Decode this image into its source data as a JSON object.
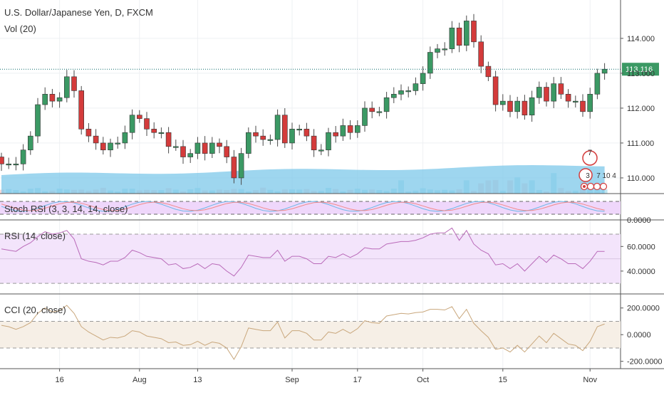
{
  "header": {
    "title": "U.S. Dollar/Japanese Yen, D, FXCM",
    "volume_label": "Vol (20)"
  },
  "price_pane": {
    "last_price": "113.116",
    "ticks": [
      "114.000",
      "113.000",
      "112.000",
      "111.000",
      "110.000"
    ],
    "event_markers": {
      "earnings_count": "7",
      "dividend_count": "3",
      "split_labels": [
        "7",
        "10",
        "4"
      ]
    }
  },
  "stoch_rsi": {
    "label": "Stoch RSI (3, 3, 14, 14, close)",
    "tick": "0.0000"
  },
  "rsi": {
    "label": "RSI (14, close)",
    "ticks": [
      "60.0000",
      "40.0000"
    ]
  },
  "cci": {
    "label": "CCI (20, close)",
    "ticks": [
      "200.0000",
      "0.0000",
      "-200.0000"
    ]
  },
  "x_axis": {
    "labels": [
      "16",
      "Aug",
      "13",
      "Sep",
      "17",
      "Oct",
      "15",
      "Nov"
    ]
  },
  "colors": {
    "up": "#3b9964",
    "down": "#d43b3b",
    "volume": "#7ec8ea",
    "rsi_line": "#b96ab9",
    "rsi_band": "#f3e4fb",
    "cci_line": "#c9a77c",
    "cci_band": "#f6efe6",
    "stoch_band": "#efd7fb",
    "last_price_line": "#0a6c6c"
  },
  "chart_data": [
    {
      "type": "candlestick",
      "title": "U.S. Dollar/Japanese Yen, D, FXCM",
      "ylim": [
        109.55,
        115.1
      ],
      "x_dates": [
        "2018-07-05",
        "2018-07-06",
        "2018-07-09",
        "2018-07-10",
        "2018-07-11",
        "2018-07-12",
        "2018-07-13",
        "2018-07-16",
        "2018-07-17",
        "2018-07-18",
        "2018-07-19",
        "2018-07-20",
        "2018-07-23",
        "2018-07-24",
        "2018-07-25",
        "2018-07-26",
        "2018-07-27",
        "2018-07-30",
        "2018-07-31",
        "2018-08-01",
        "2018-08-02",
        "2018-08-03",
        "2018-08-06",
        "2018-08-07",
        "2018-08-08",
        "2018-08-09",
        "2018-08-10",
        "2018-08-13",
        "2018-08-14",
        "2018-08-15",
        "2018-08-16",
        "2018-08-17",
        "2018-08-20",
        "2018-08-21",
        "2018-08-22",
        "2018-08-23",
        "2018-08-24",
        "2018-08-27",
        "2018-08-28",
        "2018-08-29",
        "2018-08-30",
        "2018-08-31",
        "2018-09-03",
        "2018-09-04",
        "2018-09-05",
        "2018-09-06",
        "2018-09-07",
        "2018-09-10",
        "2018-09-11",
        "2018-09-12",
        "2018-09-13",
        "2018-09-14",
        "2018-09-17",
        "2018-09-18",
        "2018-09-19",
        "2018-09-20",
        "2018-09-21",
        "2018-09-24",
        "2018-09-25",
        "2018-09-26",
        "2018-09-27",
        "2018-09-28",
        "2018-10-01",
        "2018-10-02",
        "2018-10-03",
        "2018-10-04",
        "2018-10-05",
        "2018-10-08",
        "2018-10-09",
        "2018-10-10",
        "2018-10-11",
        "2018-10-12",
        "2018-10-15",
        "2018-10-16",
        "2018-10-17",
        "2018-10-18",
        "2018-10-19",
        "2018-10-22",
        "2018-10-23",
        "2018-10-24",
        "2018-10-25",
        "2018-10-26",
        "2018-10-29",
        "2018-10-30"
      ],
      "open": [
        110.6,
        110.4,
        110.4,
        110.4,
        110.8,
        111.2,
        112.1,
        112.4,
        112.2,
        112.3,
        112.9,
        112.5,
        111.4,
        111.2,
        111.0,
        110.8,
        111.0,
        111.0,
        111.3,
        111.8,
        111.7,
        111.4,
        111.3,
        111.3,
        110.9,
        110.9,
        110.6,
        110.7,
        111.0,
        110.7,
        111.0,
        110.9,
        110.6,
        110.0,
        110.7,
        111.3,
        111.2,
        111.1,
        111.1,
        111.8,
        111.0,
        111.4,
        111.4,
        111.2,
        110.8,
        110.8,
        111.3,
        111.2,
        111.5,
        111.3,
        111.5,
        112.0,
        111.9,
        111.9,
        112.3,
        112.4,
        112.5,
        112.5,
        112.7,
        113.0,
        113.6,
        113.7,
        113.7,
        114.3,
        113.8,
        114.5,
        113.9,
        113.2,
        112.9,
        112.1,
        112.2,
        111.9,
        112.2,
        111.8,
        112.3,
        112.6,
        112.2,
        112.7,
        112.4,
        112.2,
        112.2,
        111.9,
        112.4,
        113.0
      ],
      "close": [
        110.4,
        110.4,
        110.4,
        110.8,
        111.2,
        112.1,
        112.4,
        112.2,
        112.3,
        112.9,
        112.5,
        111.4,
        111.2,
        111.0,
        110.8,
        111.0,
        111.0,
        111.3,
        111.8,
        111.7,
        111.4,
        111.3,
        111.3,
        110.9,
        110.9,
        110.6,
        110.7,
        111.0,
        110.7,
        111.0,
        110.9,
        110.6,
        110.0,
        110.7,
        111.3,
        111.2,
        111.1,
        111.1,
        111.8,
        111.0,
        111.4,
        111.4,
        111.2,
        110.8,
        110.8,
        111.3,
        111.2,
        111.5,
        111.3,
        111.5,
        112.0,
        111.9,
        111.9,
        112.3,
        112.4,
        112.5,
        112.5,
        112.7,
        113.0,
        113.6,
        113.7,
        113.7,
        114.3,
        113.8,
        114.5,
        113.9,
        113.2,
        112.9,
        112.1,
        112.2,
        111.9,
        112.2,
        111.8,
        112.3,
        112.6,
        112.2,
        112.7,
        112.4,
        112.2,
        112.2,
        111.9,
        112.4,
        113.0,
        113.116
      ]
    },
    {
      "type": "bar",
      "name": "Vol (20)"
    },
    {
      "type": "line",
      "title": "RSI (14, close)",
      "ylim": [
        22,
        81
      ],
      "bands": [
        30,
        70
      ],
      "values": [
        58,
        57,
        56,
        60,
        63,
        68,
        72,
        70,
        71,
        73,
        66,
        50,
        48,
        47,
        45,
        48,
        48,
        51,
        57,
        55,
        52,
        51,
        50,
        45,
        46,
        42,
        43,
        46,
        42,
        46,
        45,
        40,
        36,
        43,
        53,
        52,
        51,
        51,
        57,
        48,
        52,
        52,
        50,
        46,
        46,
        52,
        51,
        54,
        51,
        54,
        59,
        58,
        58,
        62,
        63,
        64,
        64,
        65,
        67,
        70,
        71,
        71,
        75,
        65,
        73,
        62,
        57,
        54,
        45,
        46,
        42,
        46,
        40,
        46,
        52,
        47,
        53,
        50,
        46,
        46,
        42,
        48,
        56,
        56
      ]
    },
    {
      "type": "line",
      "title": "CCI (20, close)",
      "ylim": [
        -255,
        300
      ],
      "values": [
        70,
        60,
        40,
        60,
        90,
        160,
        200,
        170,
        180,
        220,
        160,
        60,
        20,
        -10,
        -40,
        -20,
        -25,
        -10,
        30,
        20,
        -10,
        -20,
        -30,
        -60,
        -55,
        -80,
        -75,
        -50,
        -80,
        -55,
        -65,
        -100,
        -185,
        -90,
        50,
        40,
        30,
        30,
        95,
        -25,
        30,
        30,
        10,
        -40,
        -40,
        20,
        10,
        40,
        10,
        45,
        105,
        90,
        85,
        140,
        150,
        160,
        155,
        165,
        170,
        190,
        190,
        185,
        210,
        120,
        190,
        85,
        30,
        -20,
        -110,
        -100,
        -130,
        -80,
        -130,
        -70,
        -10,
        -60,
        10,
        -30,
        -70,
        -80,
        -120,
        -50,
        60,
        80
      ]
    }
  ]
}
